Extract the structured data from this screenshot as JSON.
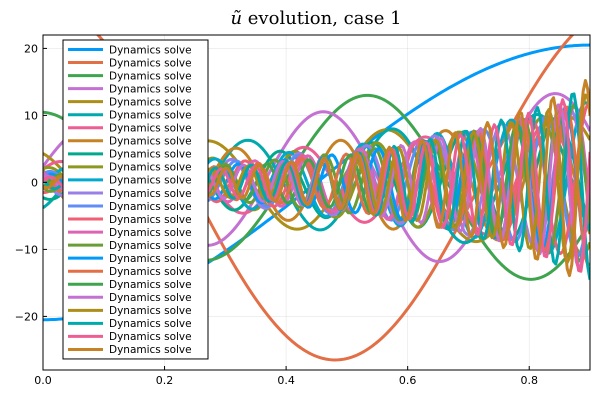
{
  "chart_data": {
    "type": "line",
    "title": {
      "var": "ũ",
      "rest": " evolution, case 1"
    },
    "xlim": [
      0,
      0.9
    ],
    "ylim": [
      -28,
      22
    ],
    "x_ticks": [
      0.0,
      0.2,
      0.4,
      0.6,
      0.8
    ],
    "x_tick_labels": [
      "0.0",
      "0.2",
      "0.4",
      "0.6",
      "0.8"
    ],
    "y_ticks": [
      -20,
      -10,
      0,
      10,
      20
    ],
    "y_tick_labels": [
      "−20",
      "−10",
      "0",
      "10",
      "20"
    ],
    "grid": true,
    "legend_position": "top-left",
    "palette": [
      "#009AFA",
      "#E36F47",
      "#3EA44E",
      "#C371D2",
      "#AC8E18",
      "#00A9AD",
      "#ED5E93",
      "#C68225",
      "#00A98D",
      "#8E971E",
      "#00A9CD",
      "#9B7FE8",
      "#618DF6",
      "#F05F73",
      "#DD64B5",
      "#6A9D33"
    ],
    "series": [
      {
        "name": "Dynamics solve",
        "color": "#009AFA",
        "amp": 20.5,
        "freq": 0.555,
        "phase": -1.571,
        "growth": 0.0
      },
      {
        "name": "Dynamics solve",
        "color": "#E36F47",
        "amp": 26.5,
        "freq": 1.04,
        "phase": 1.571,
        "growth": 0.0
      },
      {
        "name": "Dynamics solve",
        "color": "#3EA44E",
        "amp": 10.5,
        "freq": 1.86,
        "phase": 1.65,
        "growth": 0.4
      },
      {
        "name": "Dynamics solve",
        "color": "#C371D2",
        "amp": 8.0,
        "freq": 2.62,
        "phase": 0.3,
        "growth": 0.6
      },
      {
        "name": "Dynamics solve",
        "color": "#AC8E18",
        "amp": 5.0,
        "freq": 3.4,
        "phase": 2.1,
        "growth": 0.8
      },
      {
        "name": "Dynamics solve",
        "color": "#00A9AD",
        "amp": 4.5,
        "freq": 4.2,
        "phase": -1.0,
        "growth": 1.0
      },
      {
        "name": "Dynamics solve",
        "color": "#ED5E93",
        "amp": 3.0,
        "freq": 5.0,
        "phase": 0.7,
        "growth": 1.3
      },
      {
        "name": "Dynamics solve",
        "color": "#C68225",
        "amp": 3.5,
        "freq": 5.8,
        "phase": 2.6,
        "growth": 1.2
      },
      {
        "name": "Dynamics solve",
        "color": "#00A98D",
        "amp": 2.5,
        "freq": 6.6,
        "phase": -2.0,
        "growth": 1.6
      },
      {
        "name": "Dynamics solve",
        "color": "#8E971E",
        "amp": 2.2,
        "freq": 7.4,
        "phase": 1.2,
        "growth": 1.8
      },
      {
        "name": "Dynamics solve",
        "color": "#00A9CD",
        "amp": 2.0,
        "freq": 8.2,
        "phase": -0.4,
        "growth": 2.0
      },
      {
        "name": "Dynamics solve",
        "color": "#9B7FE8",
        "amp": 1.8,
        "freq": 9.0,
        "phase": 2.9,
        "growth": 2.1
      },
      {
        "name": "Dynamics solve",
        "color": "#618DF6",
        "amp": 1.6,
        "freq": 9.8,
        "phase": 0.9,
        "growth": 2.2
      },
      {
        "name": "Dynamics solve",
        "color": "#F05F73",
        "amp": 1.5,
        "freq": 10.6,
        "phase": -1.7,
        "growth": 2.3
      },
      {
        "name": "Dynamics solve",
        "color": "#DD64B5",
        "amp": 1.4,
        "freq": 11.4,
        "phase": 1.8,
        "growth": 2.4
      },
      {
        "name": "Dynamics solve",
        "color": "#6A9D33",
        "amp": 1.3,
        "freq": 12.2,
        "phase": -2.5,
        "growth": 2.5
      },
      {
        "name": "Dynamics solve",
        "color": "#009AFA",
        "amp": 1.2,
        "freq": 13.0,
        "phase": 0.5,
        "growth": 2.6
      },
      {
        "name": "Dynamics solve",
        "color": "#E36F47",
        "amp": 1.1,
        "freq": 13.8,
        "phase": 2.3,
        "growth": 2.7
      },
      {
        "name": "Dynamics solve",
        "color": "#3EA44E",
        "amp": 1.0,
        "freq": 14.6,
        "phase": -0.8,
        "growth": 2.8
      },
      {
        "name": "Dynamics solve",
        "color": "#C371D2",
        "amp": 1.0,
        "freq": 15.4,
        "phase": 1.1,
        "growth": 2.9
      },
      {
        "name": "Dynamics solve",
        "color": "#AC8E18",
        "amp": 0.9,
        "freq": 16.2,
        "phase": -1.4,
        "growth": 3.0
      },
      {
        "name": "Dynamics solve",
        "color": "#00A9AD",
        "amp": 0.9,
        "freq": 17.0,
        "phase": 2.7,
        "growth": 3.1
      },
      {
        "name": "Dynamics solve",
        "color": "#ED5E93",
        "amp": 0.8,
        "freq": 17.8,
        "phase": 0.2,
        "growth": 3.2
      },
      {
        "name": "Dynamics solve",
        "color": "#C68225",
        "amp": 0.8,
        "freq": 18.6,
        "phase": -2.2,
        "growth": 3.3
      }
    ]
  }
}
